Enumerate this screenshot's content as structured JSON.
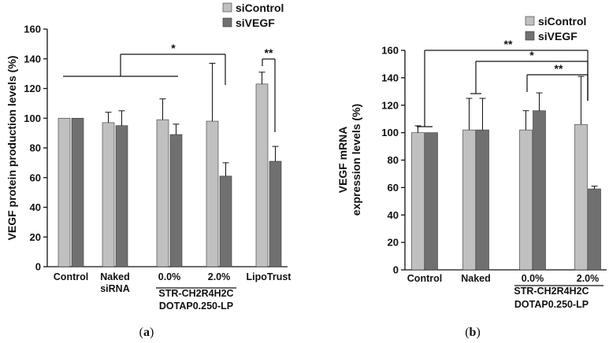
{
  "chart_data": [
    {
      "id": "a",
      "type": "bar",
      "caption_letter": "a",
      "ylabel": "VEGF protein production levels (%)",
      "ylim": [
        0,
        160
      ],
      "yticks": [
        0,
        20,
        40,
        60,
        80,
        100,
        120,
        140,
        160
      ],
      "categories": [
        "Control",
        "Naked siRNA",
        "0.0%",
        "2.0%",
        "LipoTrust"
      ],
      "category_labels": [
        [
          "Control"
        ],
        [
          "Naked",
          "siRNA"
        ],
        [
          "0.0%"
        ],
        [
          "2.0%"
        ],
        [
          "LipoTrust"
        ]
      ],
      "group_label": [
        "STR-CH2R4H2C",
        "DOTAP0.250-LP"
      ],
      "series": [
        {
          "name": "siControl",
          "color": "#c0c0c0",
          "values": [
            100,
            97,
            99,
            98,
            123
          ],
          "errors": [
            0,
            7,
            14,
            39,
            8
          ]
        },
        {
          "name": "siVEGF",
          "color": "#707070",
          "values": [
            100,
            95,
            89,
            61,
            71
          ],
          "errors": [
            0,
            10,
            7,
            9,
            10
          ]
        }
      ],
      "significance": [
        "*",
        "**"
      ]
    },
    {
      "id": "b",
      "type": "bar",
      "caption_letter": "b",
      "ylabel": [
        "VEGF mRNA",
        "expression levels (%)"
      ],
      "ylim": [
        0,
        160
      ],
      "yticks": [
        0,
        20,
        40,
        60,
        80,
        100,
        120,
        140,
        160
      ],
      "categories": [
        "Control",
        "Naked",
        "0.0%",
        "2.0%"
      ],
      "category_labels": [
        [
          "Control"
        ],
        [
          "Naked"
        ],
        [
          "0.0%"
        ],
        [
          "2.0%"
        ]
      ],
      "group_label": [
        "STR-CH2R4H2C",
        "DOTAP0.250-LP"
      ],
      "series": [
        {
          "name": "siControl",
          "color": "#c0c0c0",
          "values": [
            100,
            102,
            102,
            106
          ],
          "errors": [
            5,
            23,
            14,
            35
          ]
        },
        {
          "name": "siVEGF",
          "color": "#707070",
          "values": [
            100,
            102,
            116,
            59
          ],
          "errors": [
            0,
            23,
            13,
            2
          ]
        }
      ],
      "significance": [
        "**",
        "*",
        "**"
      ]
    }
  ]
}
